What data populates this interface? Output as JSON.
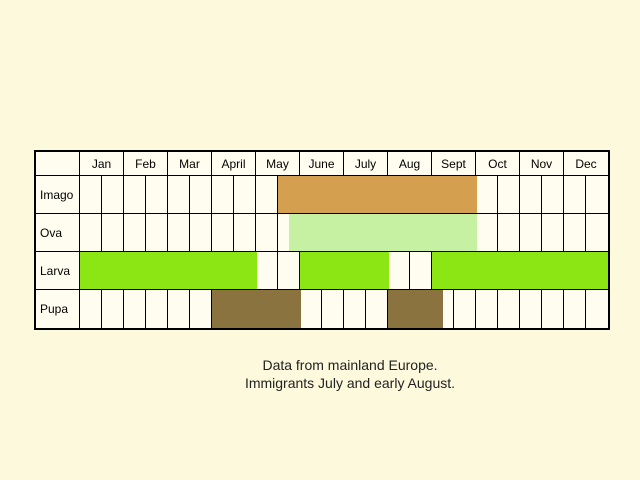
{
  "months": [
    "Jan",
    "Feb",
    "Mar",
    "April",
    "May",
    "June",
    "July",
    "Aug",
    "Sept",
    "Oct",
    "Nov",
    "Dec"
  ],
  "stages": [
    {
      "label": "Imago",
      "color": "#d4a050",
      "periods": [
        [
          9,
          18
        ]
      ]
    },
    {
      "label": "Ova",
      "color": "#c6f0a2",
      "periods": [
        [
          9.5,
          18
        ]
      ]
    },
    {
      "label": "Larva",
      "color": "#8ce614",
      "periods": [
        [
          0,
          8
        ],
        [
          10,
          14
        ],
        [
          16,
          24
        ]
      ]
    },
    {
      "label": "Pupa",
      "color": "#8b7340",
      "periods": [
        [
          6,
          10
        ],
        [
          14,
          16.5
        ]
      ]
    }
  ],
  "note": {
    "line1": "Data from mainland Europe.",
    "line2": "Immigrants July and early August."
  }
}
